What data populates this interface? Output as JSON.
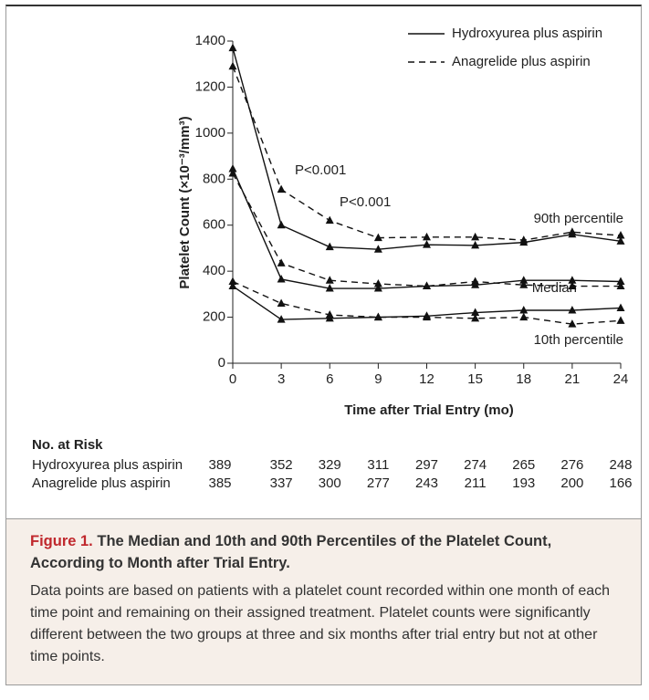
{
  "chart_data": {
    "type": "line",
    "x": [
      0,
      3,
      6,
      9,
      12,
      15,
      18,
      21,
      24
    ],
    "xlim": [
      0,
      24
    ],
    "xticks": [
      0,
      3,
      6,
      9,
      12,
      15,
      18,
      21,
      24
    ],
    "ylim": [
      0,
      1400
    ],
    "yticks": [
      0,
      200,
      400,
      600,
      800,
      1000,
      1200,
      1400
    ],
    "xlabel": "Time after Trial Entry (mo)",
    "ylabel": "Platelet Count (×10⁻³/mm³)",
    "percentile_labels": [
      "90th percentile",
      "Median",
      "10th percentile"
    ],
    "annotations": [
      "P<0.001",
      "P<0.001"
    ],
    "series": [
      {
        "name": "Hydroxyurea plus aspirin",
        "color": "#111111",
        "dashed": false,
        "values": [
          [
            1370,
            600,
            505,
            495,
            515,
            512,
            525,
            560,
            530
          ],
          [
            845,
            365,
            325,
            325,
            335,
            340,
            360,
            360,
            355
          ],
          [
            335,
            190,
            195,
            200,
            205,
            220,
            230,
            230,
            240
          ]
        ]
      },
      {
        "name": "Anagrelide plus aspirin",
        "color": "#111111",
        "dashed": true,
        "values": [
          [
            1290,
            755,
            620,
            545,
            548,
            548,
            535,
            570,
            555
          ],
          [
            825,
            435,
            360,
            345,
            335,
            355,
            340,
            335,
            335
          ],
          [
            355,
            260,
            210,
            200,
            200,
            195,
            200,
            170,
            185
          ]
        ]
      }
    ],
    "risk_table": {
      "title": "No. at Risk",
      "rows": [
        {
          "name": "Hydroxyurea plus aspirin",
          "values": [
            389,
            352,
            329,
            311,
            297,
            274,
            265,
            276,
            248
          ]
        },
        {
          "name": "Anagrelide plus aspirin",
          "values": [
            385,
            337,
            300,
            277,
            243,
            211,
            193,
            200,
            166
          ]
        }
      ]
    }
  },
  "caption": {
    "label": "Figure 1.",
    "title": "The Median and 10th and 90th Percentiles of the Platelet Count, According to Month after Trial Entry.",
    "body": "Data points are based on patients with a platelet count recorded within one month of each time point and remaining on their assigned treatment. Platelet counts were significantly different between the two groups at three and six months after trial entry but not at other time points."
  }
}
